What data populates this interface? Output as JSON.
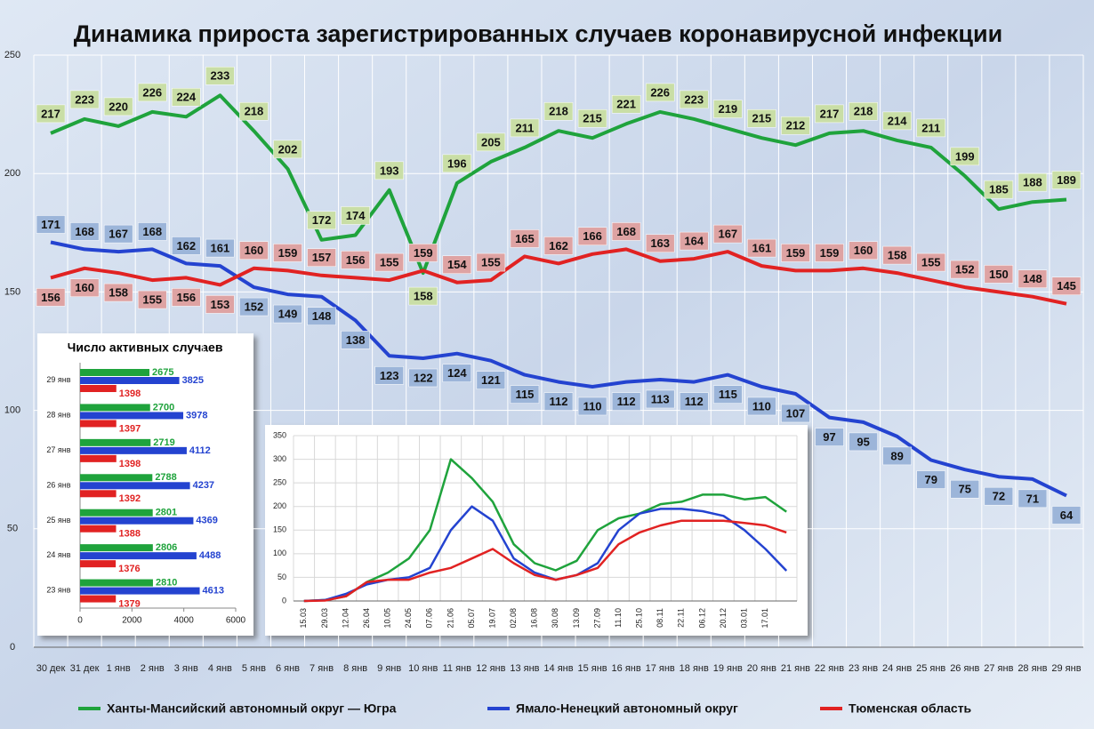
{
  "chart_data": [
    {
      "type": "line",
      "title": "Динамика прироста зарегистрированных случаев коронавирусной инфекции",
      "categories": [
        "30 дек",
        "31 дек",
        "1 янв",
        "2 янв",
        "3 янв",
        "4 янв",
        "5 янв",
        "6 янв",
        "7 янв",
        "8 янв",
        "9 янв",
        "10 янв",
        "11 янв",
        "12 янв",
        "13 янв",
        "14 янв",
        "15 янв",
        "16 янв",
        "17 янв",
        "18 янв",
        "19 янв",
        "20 янв",
        "21 янв",
        "22 янв",
        "23 янв",
        "24 янв",
        "25 янв",
        "26 янв",
        "27 янв",
        "28 янв",
        "29 янв"
      ],
      "series": [
        {
          "name": "Ханты-Мансийский автономный округ — Югра",
          "color": "#1fa33c",
          "label_color": "#c9dea6",
          "values": [
            217,
            223,
            220,
            226,
            224,
            233,
            218,
            202,
            172,
            174,
            193,
            158,
            196,
            205,
            211,
            218,
            215,
            221,
            226,
            223,
            219,
            215,
            212,
            217,
            218,
            214,
            211,
            199,
            185,
            188,
            189
          ]
        },
        {
          "name": "Ямало-Ненецкий автономный округ",
          "color": "#2443d0",
          "label_color": "#9cb5d9",
          "values": [
            171,
            168,
            167,
            168,
            162,
            161,
            152,
            149,
            148,
            138,
            123,
            122,
            124,
            121,
            115,
            112,
            110,
            112,
            113,
            112,
            115,
            110,
            107,
            97,
            95,
            89,
            79,
            75,
            72,
            71,
            64
          ]
        },
        {
          "name": "Тюменская область",
          "color": "#e12222",
          "label_color": "#dea3a3",
          "values": [
            156,
            160,
            158,
            155,
            156,
            153,
            160,
            159,
            157,
            156,
            155,
            159,
            154,
            155,
            165,
            162,
            166,
            168,
            163,
            164,
            167,
            161,
            159,
            159,
            160,
            158,
            155,
            152,
            150,
            148,
            145
          ]
        }
      ],
      "ylim": [
        0,
        250
      ],
      "yticks": [
        0,
        50,
        100,
        150,
        200,
        250
      ],
      "grid": true
    },
    {
      "type": "bar",
      "orientation": "horizontal",
      "title": "Число активных случаев",
      "categories": [
        "29 янв",
        "28 янв",
        "27 янв",
        "26 янв",
        "25 янв",
        "24 янв",
        "23 янв"
      ],
      "series": [
        {
          "color": "#1fa33c",
          "values": [
            2675,
            2700,
            2719,
            2788,
            2801,
            2806,
            2810
          ]
        },
        {
          "color": "#2443d0",
          "values": [
            3825,
            3978,
            4112,
            4237,
            4369,
            4488,
            4613
          ]
        },
        {
          "color": "#e12222",
          "values": [
            1398,
            1397,
            1398,
            1392,
            1388,
            1376,
            1379
          ]
        }
      ],
      "xlim": [
        0,
        6000
      ],
      "xticks": [
        0,
        2000,
        4000,
        6000
      ]
    },
    {
      "type": "line",
      "categories": [
        "15.03",
        "29.03",
        "12.04",
        "26.04",
        "10.05",
        "24.05",
        "07.06",
        "21.06",
        "05.07",
        "19.07",
        "02.08",
        "16.08",
        "30.08",
        "13.09",
        "27.09",
        "11.10",
        "25.10",
        "08.11",
        "22.11",
        "06.12",
        "20.12",
        "03.01",
        "17.01",
        null
      ],
      "series": [
        {
          "color": "#1fa33c",
          "values": [
            0,
            2,
            10,
            40,
            60,
            90,
            150,
            300,
            260,
            210,
            120,
            80,
            65,
            85,
            150,
            175,
            185,
            205,
            210,
            225,
            225,
            215,
            220,
            189
          ]
        },
        {
          "color": "#2443d0",
          "values": [
            0,
            2,
            15,
            35,
            45,
            50,
            70,
            150,
            200,
            170,
            90,
            60,
            45,
            55,
            80,
            150,
            185,
            195,
            195,
            190,
            180,
            150,
            110,
            64
          ]
        },
        {
          "color": "#e12222",
          "values": [
            0,
            1,
            10,
            40,
            45,
            45,
            60,
            70,
            90,
            110,
            80,
            55,
            45,
            55,
            70,
            120,
            145,
            160,
            170,
            170,
            170,
            165,
            160,
            145
          ]
        }
      ],
      "ylim": [
        0,
        350
      ],
      "yticks": [
        0,
        50,
        100,
        150,
        200,
        250,
        300,
        350
      ],
      "grid": true
    }
  ]
}
